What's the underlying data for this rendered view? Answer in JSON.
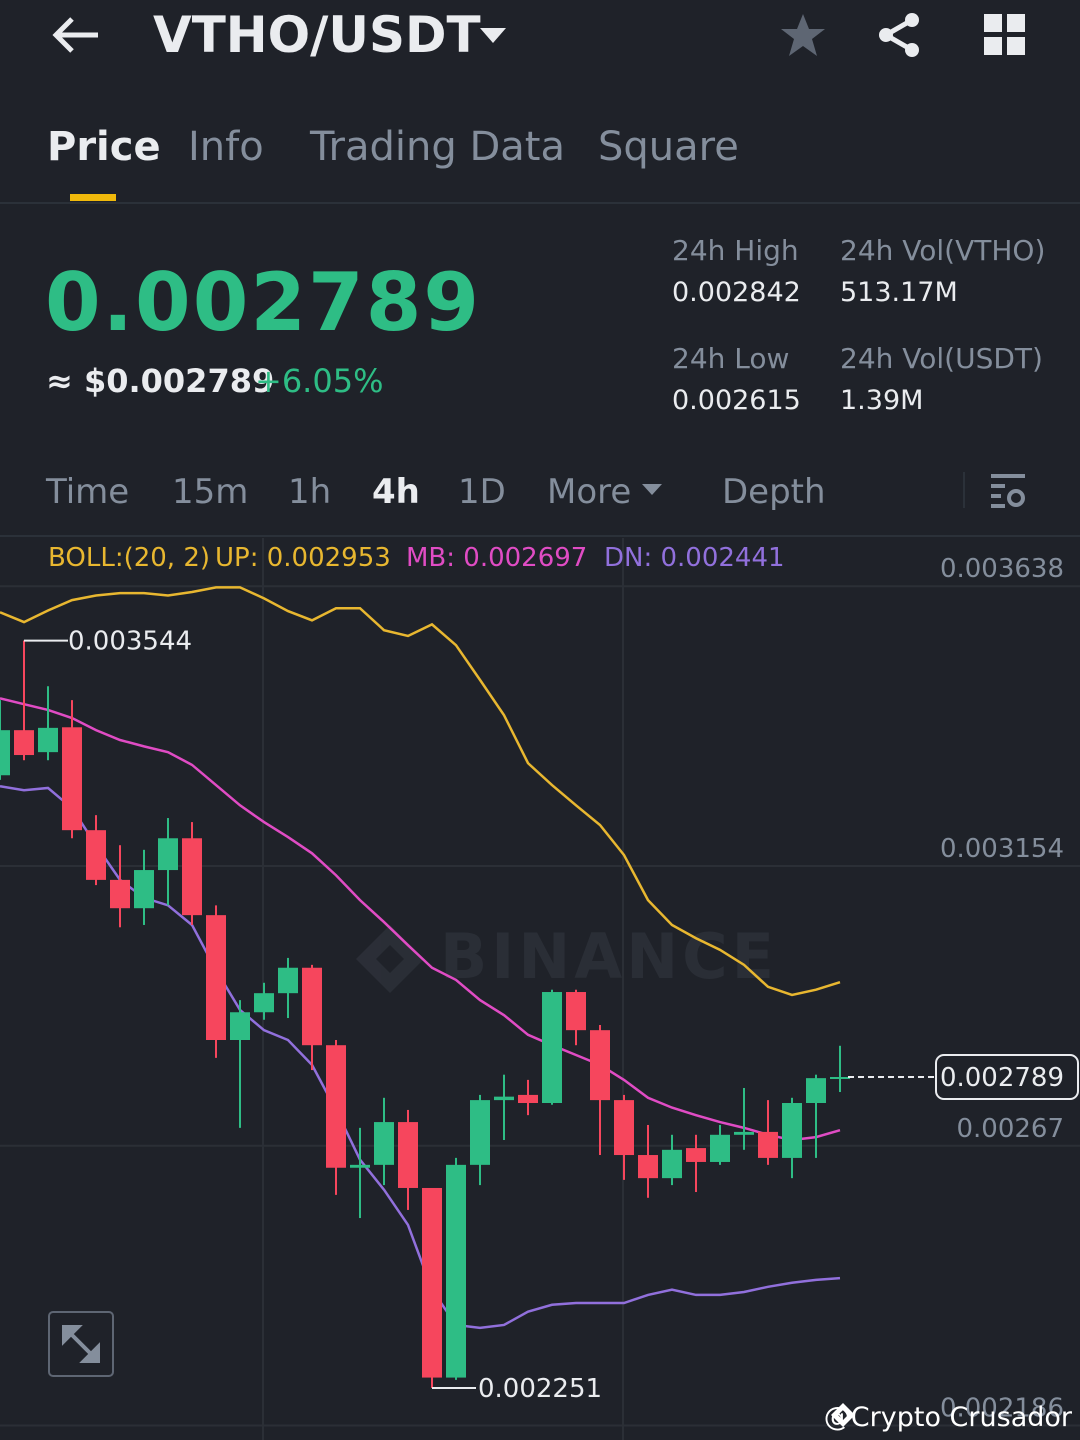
{
  "header": {
    "pair": "VTHO/USDT"
  },
  "tabs": [
    "Price",
    "Info",
    "Trading Data",
    "Square"
  ],
  "price": {
    "last": "0.002789",
    "fiat": "≈ $0.002789",
    "change": "+6.05%"
  },
  "stats": [
    {
      "label": "24h High",
      "value": "0.002842"
    },
    {
      "label": "24h Vol(VTHO)",
      "value": "513.17M"
    },
    {
      "label": "24h Low",
      "value": "0.002615"
    },
    {
      "label": "24h Vol(USDT)",
      "value": "1.39M"
    }
  ],
  "intervals": [
    "Time",
    "15m",
    "1h",
    "4h",
    "1D",
    "More",
    "Depth"
  ],
  "chart_data": {
    "type": "candlestick",
    "indicator": "BOLL:(20, 2)",
    "up_color": "#2ebd85",
    "down_color": "#f6465d",
    "open": [
      0.003311,
      0.003389,
      0.003351,
      0.003394,
      0.003216,
      0.00313,
      0.003081,
      0.003147,
      0.003202,
      0.003069,
      0.002853,
      0.002901,
      0.002934,
      0.002978,
      0.002844,
      0.002632,
      0.002637,
      0.002711,
      0.002597,
      0.002269,
      0.002637,
      0.002749,
      0.002758,
      0.002744,
      0.002936,
      0.00287,
      0.002749,
      0.002654,
      0.002614,
      0.002666,
      0.002642,
      0.002689,
      0.002694,
      0.002649,
      0.002744,
      0.002787
    ],
    "high": [
      0.003441,
      0.003544,
      0.003465,
      0.003441,
      0.003242,
      0.00319,
      0.003182,
      0.003237,
      0.00323,
      0.003086,
      0.002922,
      0.002952,
      0.002995,
      0.002983,
      0.002853,
      0.002701,
      0.002753,
      0.002732,
      0.002597,
      0.002649,
      0.002758,
      0.002793,
      0.002784,
      0.00294,
      0.00294,
      0.002879,
      0.002758,
      0.002706,
      0.002689,
      0.002689,
      0.002706,
      0.00277,
      0.002749,
      0.002753,
      0.002793,
      0.002843
    ],
    "low": [
      0.003303,
      0.003337,
      0.003337,
      0.003202,
      0.003121,
      0.003048,
      0.003052,
      0.003086,
      0.003052,
      0.002822,
      0.002701,
      0.002888,
      0.002891,
      0.002801,
      0.002585,
      0.002545,
      0.002602,
      0.002559,
      0.002251,
      0.002265,
      0.002602,
      0.00268,
      0.002723,
      0.002741,
      0.002844,
      0.002654,
      0.002611,
      0.00258,
      0.002602,
      0.00259,
      0.002637,
      0.002663,
      0.002637,
      0.002614,
      0.002649,
      0.002763
    ],
    "close": [
      0.003389,
      0.003346,
      0.003393,
      0.003216,
      0.00313,
      0.003081,
      0.003147,
      0.003202,
      0.003069,
      0.002853,
      0.002901,
      0.002934,
      0.002978,
      0.002844,
      0.002632,
      0.002637,
      0.002711,
      0.002597,
      0.002269,
      0.002637,
      0.002749,
      0.002755,
      0.002744,
      0.002936,
      0.00287,
      0.002749,
      0.002654,
      0.002614,
      0.002663,
      0.002642,
      0.002689,
      0.002694,
      0.002649,
      0.002744,
      0.002787,
      0.002789
    ],
    "series": [
      {
        "name": "UP: 0.002953",
        "color": "#e8b730",
        "values": [
          0.003593,
          0.003576,
          0.003596,
          0.003614,
          0.003622,
          0.003626,
          0.003626,
          0.003622,
          0.003628,
          0.003636,
          0.003636,
          0.003617,
          0.003595,
          0.003579,
          0.0036,
          0.0036,
          0.003562,
          0.003552,
          0.003572,
          0.003536,
          0.003476,
          0.003415,
          0.003332,
          0.003294,
          0.003259,
          0.003225,
          0.003173,
          0.003095,
          0.003052,
          0.003029,
          0.003009,
          0.002983,
          0.002945,
          0.002931,
          0.00294,
          0.002953
        ]
      },
      {
        "name": "MB: 0.002697",
        "color": "#e04cc4",
        "values": [
          0.003444,
          0.003434,
          0.003424,
          0.00341,
          0.003389,
          0.003372,
          0.003361,
          0.003351,
          0.003329,
          0.003294,
          0.003259,
          0.00323,
          0.003204,
          0.003176,
          0.003138,
          0.003095,
          0.003057,
          0.003017,
          0.002978,
          0.002957,
          0.002922,
          0.002896,
          0.002862,
          0.002844,
          0.002827,
          0.00281,
          0.002784,
          0.002753,
          0.002736,
          0.002723,
          0.002711,
          0.002701,
          0.002689,
          0.00268,
          0.002685,
          0.002697
        ]
      },
      {
        "name": "DN: 0.002441",
        "color": "#9170dc",
        "values": [
          0.003292,
          0.003285,
          0.003289,
          0.003254,
          0.00319,
          0.00313,
          0.003099,
          0.003086,
          0.003052,
          0.002974,
          0.002905,
          0.00287,
          0.002853,
          0.00281,
          0.002732,
          0.002646,
          0.002594,
          0.002533,
          0.002421,
          0.00236,
          0.002355,
          0.00236,
          0.002383,
          0.002395,
          0.002398,
          0.002398,
          0.002398,
          0.002412,
          0.002421,
          0.002412,
          0.002412,
          0.002417,
          0.002426,
          0.002433,
          0.002438,
          0.002441
        ]
      }
    ],
    "ylim": [
      0.002161,
      0.003718
    ],
    "yticks": [
      0.003638,
      0.003154,
      0.00267,
      0.002186
    ],
    "max_label": 0.003544,
    "min_label": 0.002251,
    "last_price": 0.002789
  },
  "watermark": "BINANCE",
  "credit": "@Crypto Crusador"
}
